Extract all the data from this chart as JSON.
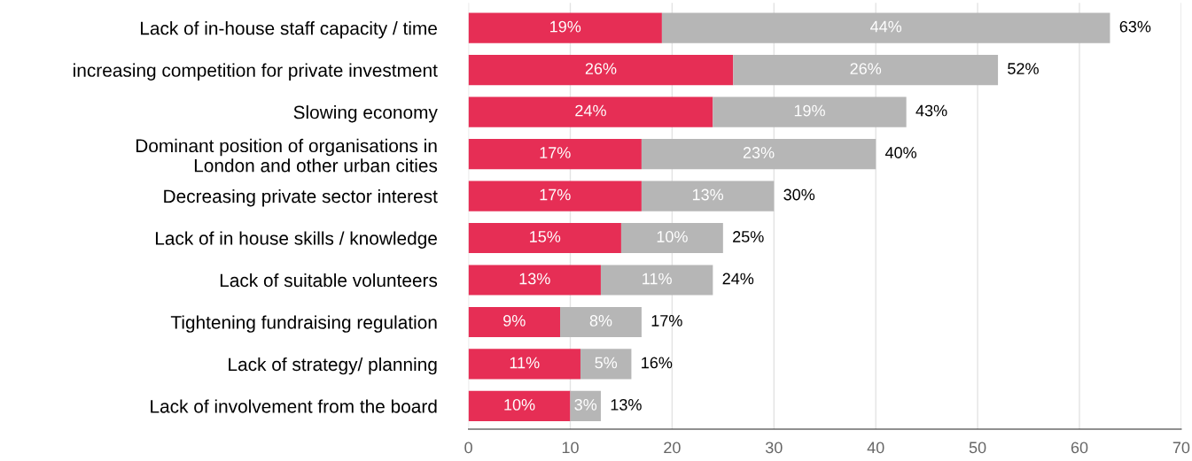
{
  "chart_data": {
    "type": "bar",
    "orientation": "horizontal",
    "stacked": true,
    "categories": [
      "Lack of in-house staff capacity / time",
      "increasing competition for private investment",
      "Slowing economy",
      "Dominant position of organisations in\nLondon and other urban cities",
      "Decreasing private sector interest",
      "Lack of in house skills / knowledge",
      "Lack of suitable volunteers",
      "Tightening fundraising regulation",
      "Lack of strategy/ planning",
      "Lack of involvement from the board"
    ],
    "series": [
      {
        "color": "#e62e55",
        "values": [
          19,
          26,
          24,
          17,
          17,
          15,
          13,
          9,
          11,
          10
        ],
        "value_labels": [
          "19%",
          "26%",
          "24%",
          "17%",
          "17%",
          "15%",
          "13%",
          "9%",
          "11%",
          "10%"
        ]
      },
      {
        "color": "#b6b6b6",
        "values": [
          44,
          26,
          19,
          23,
          13,
          10,
          11,
          8,
          5,
          3
        ],
        "value_labels": [
          "44%",
          "26%",
          "19%",
          "23%",
          "13%",
          "10%",
          "11%",
          "8%",
          "5%",
          "3%"
        ]
      }
    ],
    "totals": [
      "63%",
      "52%",
      "43%",
      "40%",
      "30%",
      "25%",
      "24%",
      "17%",
      "16%",
      "13%"
    ],
    "xlim": [
      0,
      70
    ],
    "xticks": [
      0,
      10,
      20,
      30,
      40,
      50,
      60,
      70
    ],
    "grid": "x",
    "legend": false
  }
}
